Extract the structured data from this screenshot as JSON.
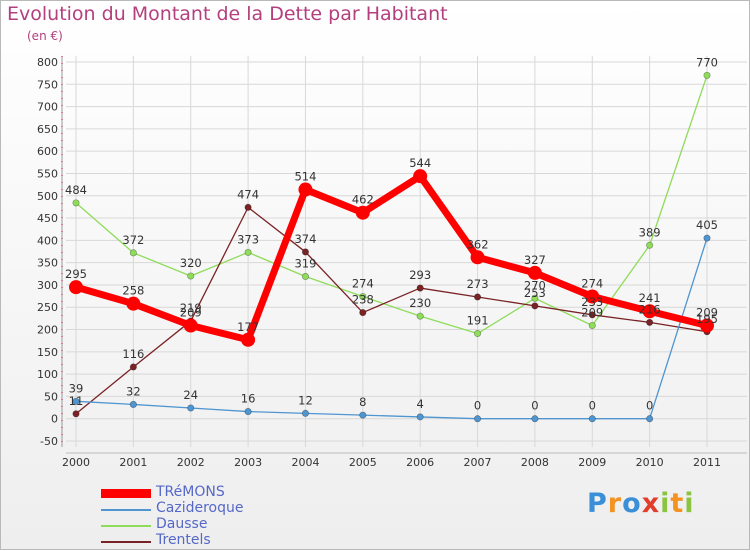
{
  "header": {
    "title": "Evolution du Montant de la Dette par Habitant",
    "subtitle": "(en €)"
  },
  "logo": {
    "text": "Proxiti",
    "letters": [
      {
        "ch": "P",
        "color": "#3a8fd6"
      },
      {
        "ch": "r",
        "color": "#f39322"
      },
      {
        "ch": "o",
        "color": "#3a8fd6"
      },
      {
        "ch": "x",
        "color": "#e23c2b"
      },
      {
        "ch": "i",
        "color": "#8bc53f"
      },
      {
        "ch": "t",
        "color": "#f39322"
      },
      {
        "ch": "i",
        "color": "#8bc53f"
      }
    ]
  },
  "chart_data": {
    "type": "line",
    "title": "Evolution du Montant de la Dette par Habitant",
    "subtitle": "(en €)",
    "x": [
      "2000",
      "2001",
      "2002",
      "2003",
      "2004",
      "2005",
      "2006",
      "2007",
      "2008",
      "2009",
      "2010",
      "2011"
    ],
    "ylim": [
      -50,
      800
    ],
    "yticks": [
      -50,
      0,
      50,
      100,
      150,
      200,
      250,
      300,
      350,
      400,
      450,
      500,
      550,
      600,
      650,
      700,
      750,
      800
    ],
    "grid": true,
    "legend_position": "bottom-left",
    "series": [
      {
        "name": "Dausse",
        "color": "#8fdc5a",
        "values": [
          484,
          372,
          320,
          373,
          319,
          274,
          230,
          191,
          270,
          209,
          389,
          770
        ]
      },
      {
        "name": "Trentels",
        "color": "#7a2326",
        "values": [
          11,
          116,
          219,
          474,
          374,
          238,
          293,
          273,
          253,
          233,
          216,
          195
        ]
      },
      {
        "name": "Cazideroque",
        "color": "#4f95d0",
        "values": [
          39,
          32,
          24,
          16,
          12,
          8,
          4,
          0,
          0,
          0,
          0,
          405
        ]
      },
      {
        "name": "TRéMONS",
        "color": "#ff0000",
        "values": [
          295,
          258,
          209,
          177,
          514,
          462,
          544,
          362,
          327,
          274,
          241,
          209
        ]
      }
    ],
    "labels": [
      {
        "series": "Dausse",
        "labels": [
          "484",
          "372",
          "320",
          "373",
          "319",
          "274",
          "230",
          "191",
          "270",
          "209",
          "389",
          "770"
        ]
      },
      {
        "series": "Trentels",
        "labels": [
          "11",
          "116",
          "219",
          "474",
          "374",
          "238",
          "293",
          "273",
          "253",
          "233",
          "216",
          "195"
        ]
      },
      {
        "series": "Cazideroque",
        "labels": [
          "39",
          "32",
          "24",
          "16",
          "12",
          "8",
          "4",
          "0",
          "0",
          "0",
          "0",
          "405"
        ]
      },
      {
        "series": "TRéMONS",
        "labels": [
          "295",
          "258",
          "209",
          "177",
          "514",
          "462",
          "544",
          "362",
          "327",
          "274",
          "241",
          "209"
        ]
      }
    ]
  },
  "legend": {
    "items": [
      {
        "label": "TRéMONS",
        "color": "#ff0000"
      },
      {
        "label": "Cazideroque",
        "color": "#4f95d0"
      },
      {
        "label": "Dausse",
        "color": "#8fdc5a"
      },
      {
        "label": "Trentels",
        "color": "#7a2326"
      }
    ]
  }
}
